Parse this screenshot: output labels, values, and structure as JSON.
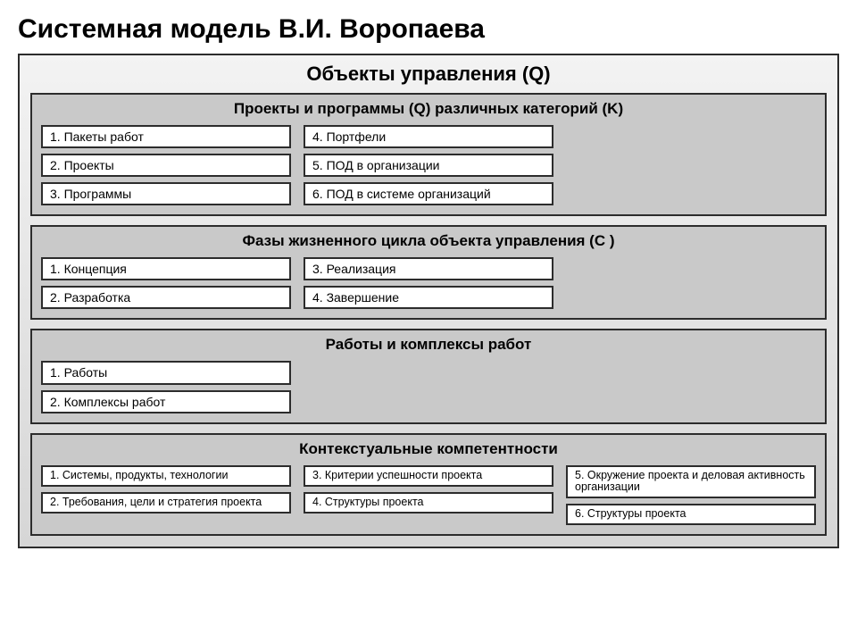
{
  "title": "Системная модель В.И. Воропаева",
  "outer": {
    "title": "Объекты управления (Q)",
    "border_color": "#2c2c2c",
    "bg_gradient_top": "#f3f3f3",
    "bg_gradient_bottom": "#d6d6d6",
    "title_fontsize": 22
  },
  "sections": {
    "projects": {
      "title": "Проекты и программы (Q) различных категорий (K)",
      "col1": [
        "1. Пакеты работ",
        "2. Проекты",
        "3. Программы"
      ],
      "col2": [
        "4. Портфели",
        "5. ПОД в организации",
        "6. ПОД в системе организаций"
      ]
    },
    "phases": {
      "title": "Фазы жизненного цикла объекта управления (C )",
      "col1": [
        "1. Концепция",
        "2. Разработка"
      ],
      "col2": [
        "3. Реализация",
        "4. Завершение"
      ]
    },
    "works": {
      "title": "Работы и комплексы работ",
      "col1": [
        "1. Работы",
        "2. Комплексы работ"
      ]
    },
    "context": {
      "title": "Контекстуальные компетентности",
      "col1": [
        "1. Системы, продукты, технологии",
        "2. Требования, цели и стратегия проекта"
      ],
      "col2": [
        "3. Критерии успешности проекта",
        "4. Структуры проекта"
      ],
      "col3": [
        "5. Окружение проекта и деловая активность организации",
        "6. Структуры проекта"
      ]
    }
  },
  "styling": {
    "cell_bg": "#ffffff",
    "cell_border": "#2c2c2c",
    "section_bg": "#c9c9c9",
    "section_border": "#2c2c2c",
    "page_bg": "#ffffff",
    "title_fontsize": 30,
    "section_title_fontsize": 17,
    "cell_fontsize": 14,
    "small_cell_fontsize": 12.5
  }
}
